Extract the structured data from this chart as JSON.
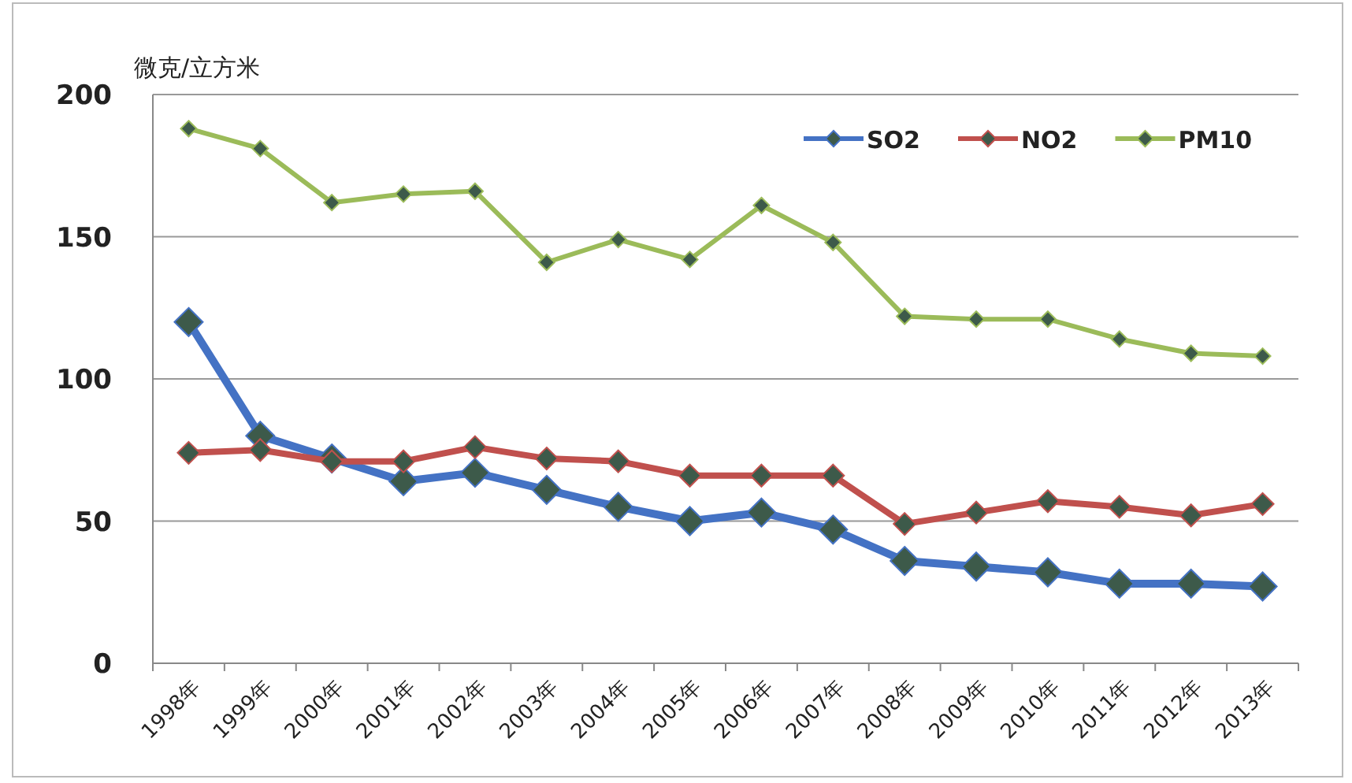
{
  "chart_data": {
    "type": "line",
    "ylabel": "微克/立方米",
    "categories": [
      "1998年",
      "1999年",
      "2000年",
      "2001年",
      "2002年",
      "2003年",
      "2004年",
      "2005年",
      "2006年",
      "2007年",
      "2008年",
      "2009年",
      "2010年",
      "2011年",
      "2012年",
      "2013年"
    ],
    "series": [
      {
        "name": "SO2",
        "color": "#4472c4",
        "values": [
          120,
          80,
          72,
          64,
          67,
          61,
          55,
          50,
          53,
          47,
          36,
          34,
          32,
          28,
          28,
          27
        ]
      },
      {
        "name": "NO2",
        "color": "#c0504d",
        "values": [
          74,
          75,
          71,
          71,
          76,
          72,
          71,
          66,
          66,
          66,
          49,
          53,
          57,
          55,
          52,
          56
        ]
      },
      {
        "name": "PM10",
        "color": "#9bbb59",
        "values": [
          188,
          181,
          162,
          165,
          166,
          141,
          149,
          142,
          161,
          148,
          122,
          121,
          121,
          114,
          109,
          108
        ]
      }
    ],
    "ylim": [
      0,
      200
    ],
    "yticks": [
      0,
      50,
      100,
      150,
      200
    ],
    "grid": "y",
    "legend": "top right",
    "marker": "diamond",
    "line_style": "solid"
  }
}
